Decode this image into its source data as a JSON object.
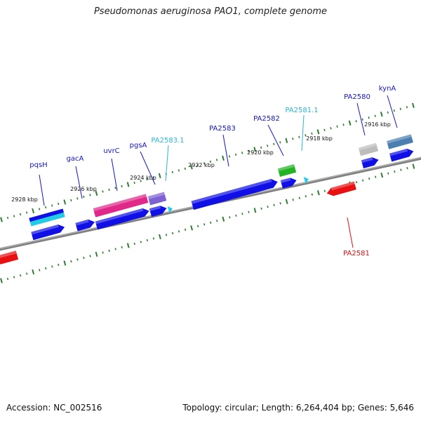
{
  "title": "Pseudomonas aeruginosa PAO1, complete genome",
  "footer": {
    "accession": "Accession: NC_002516",
    "meta": "Topology: circular; Length: 6,264,404 bp; Genes: 5,646"
  },
  "colors": {
    "backbone": "#7f7f7f",
    "ticks": "#2e7d32",
    "cds": "#1010e6",
    "pink": "#e0288a",
    "purple": "#7e62d4",
    "green": "#22b422",
    "cyan": "#22cce6",
    "gray": "#bdbdbd",
    "steel": "#4a7fb0",
    "red": "#e81010",
    "gene_label": "#1414c8",
    "rna_label": "#29b6d6",
    "reverse_label": "#e01010"
  },
  "kbp_labels": [
    {
      "id": "2928",
      "text": "2928 kbp"
    },
    {
      "id": "2926",
      "text": "2926 kbp"
    },
    {
      "id": "2924",
      "text": "2924 kbp"
    },
    {
      "id": "2922",
      "text": "2922 kbp"
    },
    {
      "id": "2920",
      "text": "2920 kbp"
    },
    {
      "id": "2918",
      "text": "2918 kbp"
    },
    {
      "id": "2916",
      "text": "2916 kbp"
    }
  ],
  "gene_labels": [
    {
      "id": "pqsH",
      "text": "pqsH",
      "kind": "gene"
    },
    {
      "id": "gacA",
      "text": "gacA",
      "kind": "gene"
    },
    {
      "id": "uvrC",
      "text": "uvrC",
      "kind": "gene"
    },
    {
      "id": "pgsA",
      "text": "pgsA",
      "kind": "gene"
    },
    {
      "id": "PA2583_1",
      "text": "PA2583.1",
      "kind": "rna"
    },
    {
      "id": "PA2583",
      "text": "PA2583",
      "kind": "gene"
    },
    {
      "id": "PA2582",
      "text": "PA2582",
      "kind": "gene"
    },
    {
      "id": "PA2581_1",
      "text": "PA2581.1",
      "kind": "rna"
    },
    {
      "id": "PA2580",
      "text": "PA2580",
      "kind": "gene"
    },
    {
      "id": "kynA",
      "text": "kynA",
      "kind": "gene"
    },
    {
      "id": "PA2581",
      "text": "PA2581",
      "kind": "reverse"
    }
  ]
}
